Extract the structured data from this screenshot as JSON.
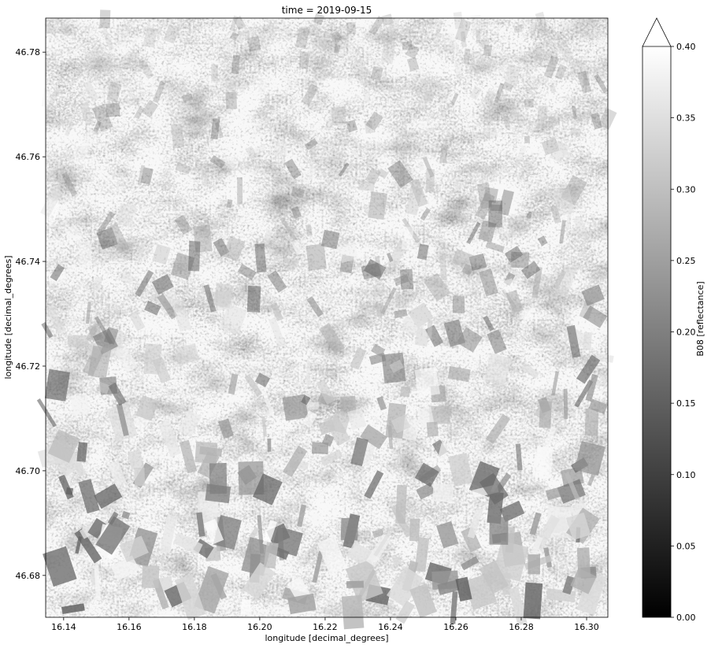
{
  "chart_data": {
    "type": "heatmap",
    "title": "time = 2019-09-15",
    "xlabel": "longitude [decimal_degrees]",
    "ylabel": "longitude [decimal_degrees]",
    "xlim": [
      16.1345,
      16.3065
    ],
    "ylim": [
      46.672,
      46.7865
    ],
    "x_ticks": [
      "16.14",
      "16.16",
      "16.18",
      "16.20",
      "16.22",
      "16.24",
      "16.26",
      "16.28",
      "16.30"
    ],
    "y_ticks": [
      "46.68",
      "46.70",
      "46.72",
      "46.74",
      "46.76",
      "46.78"
    ],
    "colormap": "gray",
    "colorbar": {
      "label": "B08 [reflectance]",
      "range": [
        0.0,
        0.4
      ],
      "extend": "max",
      "ticks": [
        "0.00",
        "0.05",
        "0.10",
        "0.15",
        "0.20",
        "0.25",
        "0.30",
        "0.35",
        "0.40"
      ]
    },
    "grid": false
  }
}
